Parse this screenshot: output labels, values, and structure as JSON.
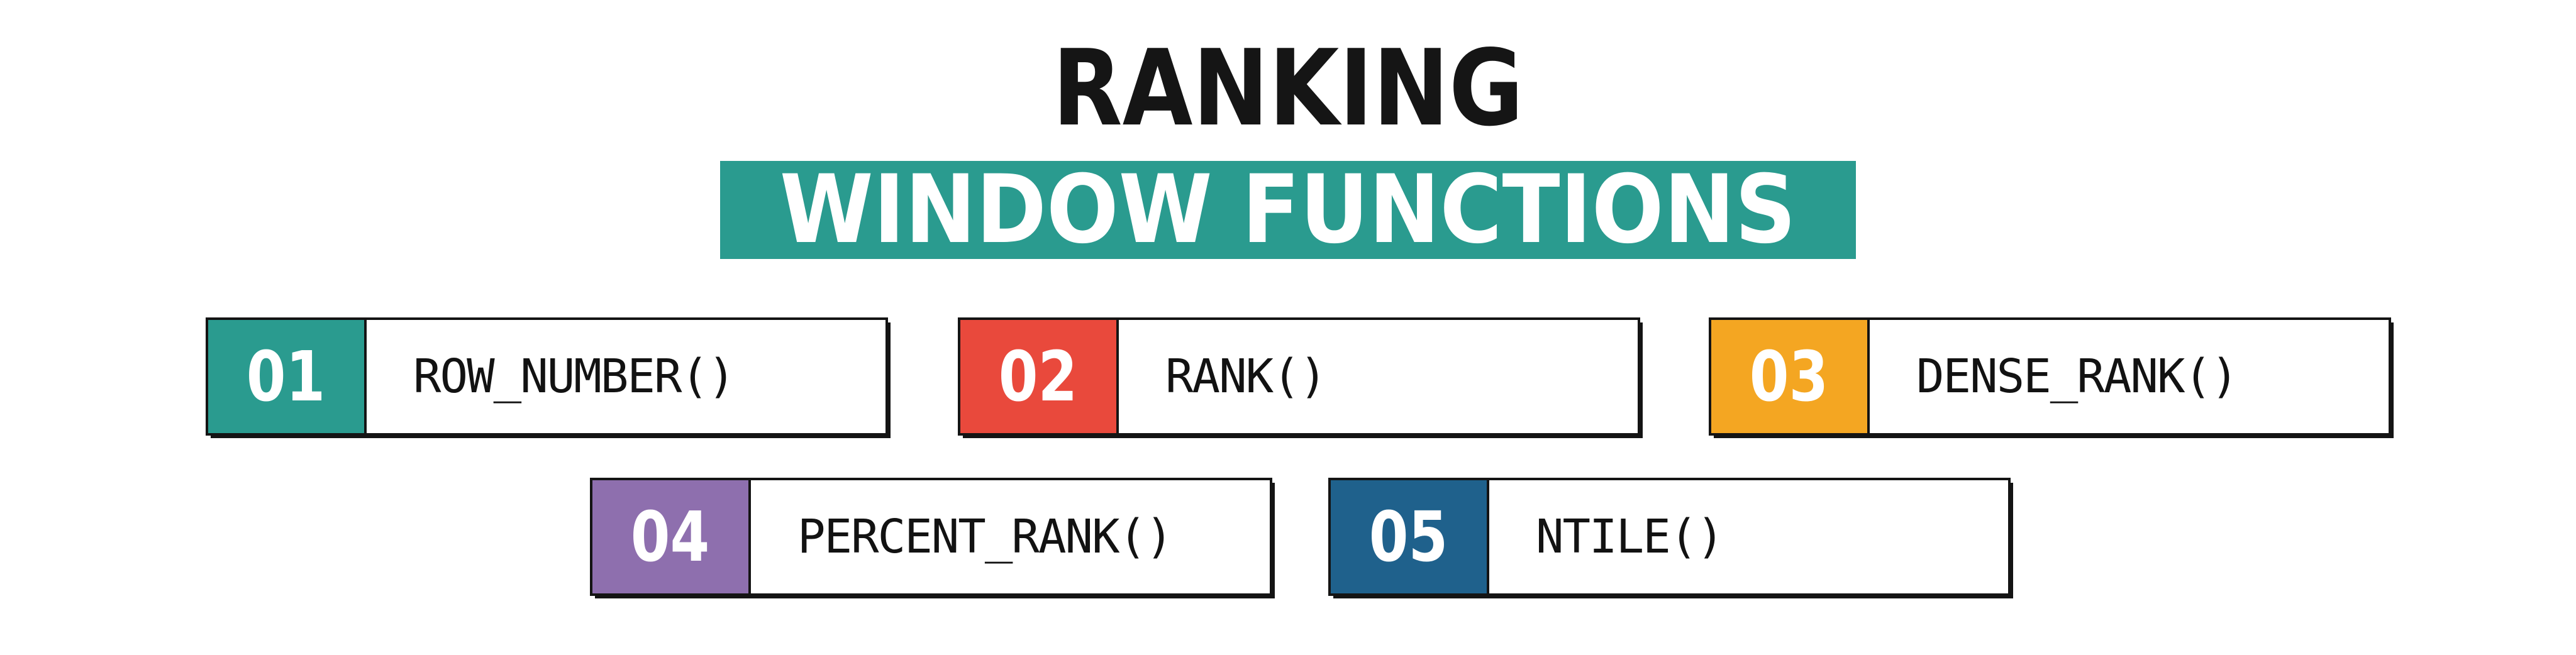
{
  "page": {
    "background": "#ffffff"
  },
  "header": {
    "title": "RANKING",
    "subtitle": "WINDOW FUNCTIONS",
    "title_color": "#151515",
    "banner_bg": "#2A9B8F",
    "banner_text_color": "#ffffff"
  },
  "colors": {
    "ink": "#141414",
    "card_border": "#141414",
    "teal": "#2A9B8F",
    "red": "#E9493C",
    "orange": "#F4A622",
    "purple": "#8E6FAE",
    "blue": "#1F618C"
  },
  "cards": [
    {
      "number": "01",
      "label": "ROW_NUMBER()",
      "accent": "#2A9B8F"
    },
    {
      "number": "02",
      "label": "RANK()",
      "accent": "#E9493C"
    },
    {
      "number": "03",
      "label": "DENSE_RANK()",
      "accent": "#F4A622"
    },
    {
      "number": "04",
      "label": "PERCENT_RANK()",
      "accent": "#8E6FAE"
    },
    {
      "number": "05",
      "label": "NTILE()",
      "accent": "#1F618C"
    }
  ]
}
